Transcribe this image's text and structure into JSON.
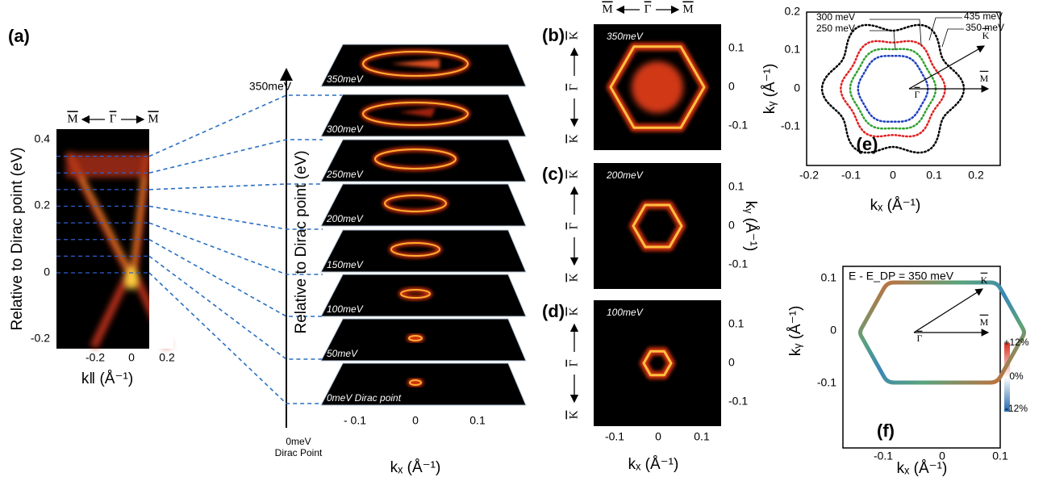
{
  "panel_a": {
    "label": "(a)",
    "direction": {
      "left": "M",
      "center": "Γ",
      "right": "M"
    },
    "y_axis_title": "Relative to Dirac point (eV)",
    "x_axis_title": "k‖ (Å⁻¹)",
    "yticks": [
      "0.4",
      "0.2",
      "0",
      "-0.2"
    ],
    "xticks": [
      "-0.2",
      "0",
      "0.2"
    ]
  },
  "stack": {
    "top_label": "350meV",
    "bottom_label": [
      "0meV",
      "Dirac Point"
    ],
    "axis_title": "Relative to Dirac point (eV)",
    "slices": [
      "350meV",
      "300meV",
      "250meV",
      "200meV",
      "150meV",
      "100meV",
      "50meV",
      "0meV Dirac point"
    ],
    "xticks": [
      "- 0.1",
      "0",
      "0.1"
    ],
    "x_axis_title": "kₓ (Å⁻¹)"
  },
  "panels_bcd": {
    "direction_top": {
      "left": "M",
      "center": "Γ",
      "right": "M"
    },
    "direction_side": {
      "top": "K",
      "center": "Γ",
      "bottom": "K"
    },
    "panels": [
      {
        "label": "(b)",
        "energy": "350meV",
        "yticks": [
          "0.1",
          "0",
          "-0.1"
        ]
      },
      {
        "label": "(c)",
        "energy": "200meV",
        "yticks": [
          "0.1",
          "0",
          "-0.1"
        ]
      },
      {
        "label": "(d)",
        "energy": "100meV",
        "yticks": [
          "0.1",
          "0",
          "-0.1"
        ]
      }
    ],
    "y_axis_title": "kᵧ (Å⁻¹)",
    "xticks": [
      "-0.1",
      "0",
      "0.1"
    ],
    "x_axis_title": "kₓ (Å⁻¹)"
  },
  "panel_e": {
    "label": "(e)",
    "contours": [
      "300 meV",
      "250 meV",
      "435 meV",
      "350 meV"
    ],
    "points": {
      "K": "K",
      "M": "M",
      "G": "Γ"
    },
    "yticks": [
      "0.2",
      "0.1",
      "0",
      "-0.1"
    ],
    "xticks": [
      "-0.2",
      "-0.1",
      "0",
      "0.1",
      "0.2"
    ],
    "y_axis_title": "kᵧ (Å⁻¹)",
    "x_axis_title": "kₓ (Å⁻¹)"
  },
  "panel_f": {
    "label": "(f)",
    "title": "E - E_DP = 350 meV",
    "points": {
      "K": "K",
      "M": "M",
      "G": "Γ"
    },
    "colorbar": [
      "+12%",
      "0%",
      "-12%"
    ],
    "yticks": [
      "0.1",
      "0",
      "-0.1"
    ],
    "xticks": [
      "-0.1",
      "0",
      "0.1"
    ],
    "y_axis_title": "kᵧ (Å⁻¹)",
    "x_axis_title": "kₓ (Å⁻¹)"
  }
}
